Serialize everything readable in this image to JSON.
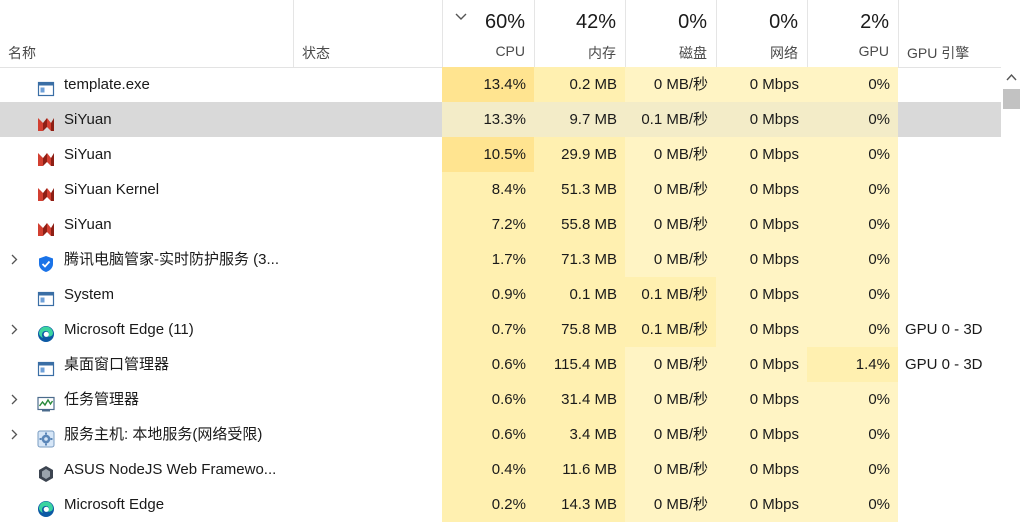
{
  "header": {
    "name_label": "名称",
    "status_label": "状态",
    "cpu_pct": "60%",
    "cpu_label": "CPU",
    "mem_pct": "42%",
    "mem_label": "内存",
    "disk_pct": "0%",
    "disk_label": "磁盘",
    "net_pct": "0%",
    "net_label": "网络",
    "gpu_pct": "2%",
    "gpu_label": "GPU",
    "gpu_engine_label": "GPU 引擎"
  },
  "rows": [
    {
      "name": "template.exe",
      "icon": "window-app-icon",
      "expandable": false,
      "cpu": "13.4%",
      "mem": "0.2 MB",
      "disk": "0 MB/秒",
      "net": "0 Mbps",
      "gpu": "0%",
      "gpu_engine": ""
    },
    {
      "name": "SiYuan",
      "icon": "siyuan-icon",
      "expandable": false,
      "selected": true,
      "cpu": "13.3%",
      "mem": "9.7 MB",
      "disk": "0.1 MB/秒",
      "net": "0 Mbps",
      "gpu": "0%",
      "gpu_engine": ""
    },
    {
      "name": "SiYuan",
      "icon": "siyuan-icon",
      "expandable": false,
      "cpu": "10.5%",
      "mem": "29.9 MB",
      "disk": "0 MB/秒",
      "net": "0 Mbps",
      "gpu": "0%",
      "gpu_engine": ""
    },
    {
      "name": "SiYuan Kernel",
      "icon": "siyuan-icon",
      "expandable": false,
      "cpu": "8.4%",
      "mem": "51.3 MB",
      "disk": "0 MB/秒",
      "net": "0 Mbps",
      "gpu": "0%",
      "gpu_engine": ""
    },
    {
      "name": "SiYuan",
      "icon": "siyuan-icon",
      "expandable": false,
      "cpu": "7.2%",
      "mem": "55.8 MB",
      "disk": "0 MB/秒",
      "net": "0 Mbps",
      "gpu": "0%",
      "gpu_engine": ""
    },
    {
      "name": "腾讯电脑管家-实时防护服务 (3...",
      "icon": "shield-icon",
      "expandable": true,
      "cpu": "1.7%",
      "mem": "71.3 MB",
      "disk": "0 MB/秒",
      "net": "0 Mbps",
      "gpu": "0%",
      "gpu_engine": ""
    },
    {
      "name": "System",
      "icon": "window-app-icon",
      "expandable": false,
      "cpu": "0.9%",
      "mem": "0.1 MB",
      "disk": "0.1 MB/秒",
      "net": "0 Mbps",
      "gpu": "0%",
      "gpu_engine": ""
    },
    {
      "name": "Microsoft Edge (11)",
      "icon": "edge-icon",
      "expandable": true,
      "cpu": "0.7%",
      "mem": "75.8 MB",
      "disk": "0.1 MB/秒",
      "net": "0 Mbps",
      "gpu": "0%",
      "gpu_engine": "GPU 0 - 3D"
    },
    {
      "name": "桌面窗口管理器",
      "icon": "window-app-icon",
      "expandable": false,
      "cpu": "0.6%",
      "mem": "115.4 MB",
      "disk": "0 MB/秒",
      "net": "0 Mbps",
      "gpu": "1.4%",
      "gpu_engine": "GPU 0 - 3D"
    },
    {
      "name": "任务管理器",
      "icon": "task-manager-icon",
      "expandable": true,
      "cpu": "0.6%",
      "mem": "31.4 MB",
      "disk": "0 MB/秒",
      "net": "0 Mbps",
      "gpu": "0%",
      "gpu_engine": ""
    },
    {
      "name": "服务主机: 本地服务(网络受限)",
      "icon": "gear-icon",
      "expandable": true,
      "cpu": "0.6%",
      "mem": "3.4 MB",
      "disk": "0 MB/秒",
      "net": "0 Mbps",
      "gpu": "0%",
      "gpu_engine": ""
    },
    {
      "name": "ASUS NodeJS Web Framewo...",
      "icon": "hexagon-icon",
      "expandable": false,
      "cpu": "0.4%",
      "mem": "11.6 MB",
      "disk": "0 MB/秒",
      "net": "0 Mbps",
      "gpu": "0%",
      "gpu_engine": ""
    },
    {
      "name": "Microsoft Edge",
      "icon": "edge-icon",
      "expandable": false,
      "cpu": "0.2%",
      "mem": "14.3 MB",
      "disk": "0 MB/秒",
      "net": "0 Mbps",
      "gpu": "0%",
      "gpu_engine": ""
    }
  ]
}
